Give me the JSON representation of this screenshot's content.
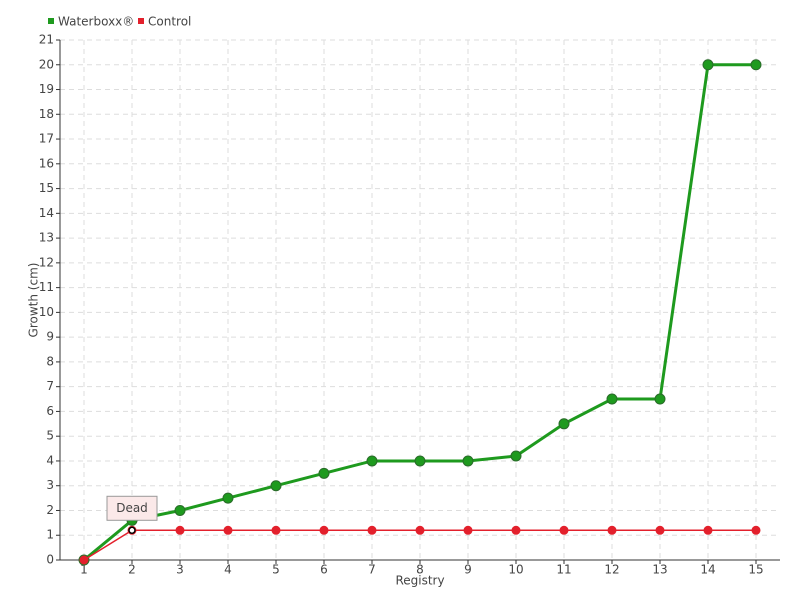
{
  "chart_data": {
    "type": "line",
    "x_label": "Registry",
    "y_label": "Growth (cm)",
    "categories": [
      "1",
      "2",
      "3",
      "4",
      "5",
      "6",
      "7",
      "8",
      "9",
      "10",
      "11",
      "12",
      "13",
      "14",
      "15"
    ],
    "series": [
      {
        "name": "Waterboxx®",
        "color": "#1e9a1e",
        "values": [
          0,
          1.6,
          2,
          2.5,
          3,
          3.5,
          4,
          4,
          4,
          4.2,
          5.5,
          6.5,
          6.5,
          20,
          20
        ]
      },
      {
        "name": "Control",
        "color": "#e3202c",
        "values": [
          0,
          1.2,
          1.2,
          1.2,
          1.2,
          1.2,
          1.2,
          1.2,
          1.2,
          1.2,
          1.2,
          1.2,
          1.2,
          1.2,
          1.2
        ]
      }
    ],
    "annotation": {
      "text": "Dead",
      "category": "2"
    },
    "ylim": [
      0,
      21
    ],
    "yticks": [
      0,
      1,
      2,
      3,
      4,
      5,
      6,
      7,
      8,
      9,
      10,
      11,
      12,
      13,
      14,
      15,
      16,
      17,
      18,
      19,
      20,
      21
    ],
    "grid": true,
    "legend": "top-left"
  }
}
